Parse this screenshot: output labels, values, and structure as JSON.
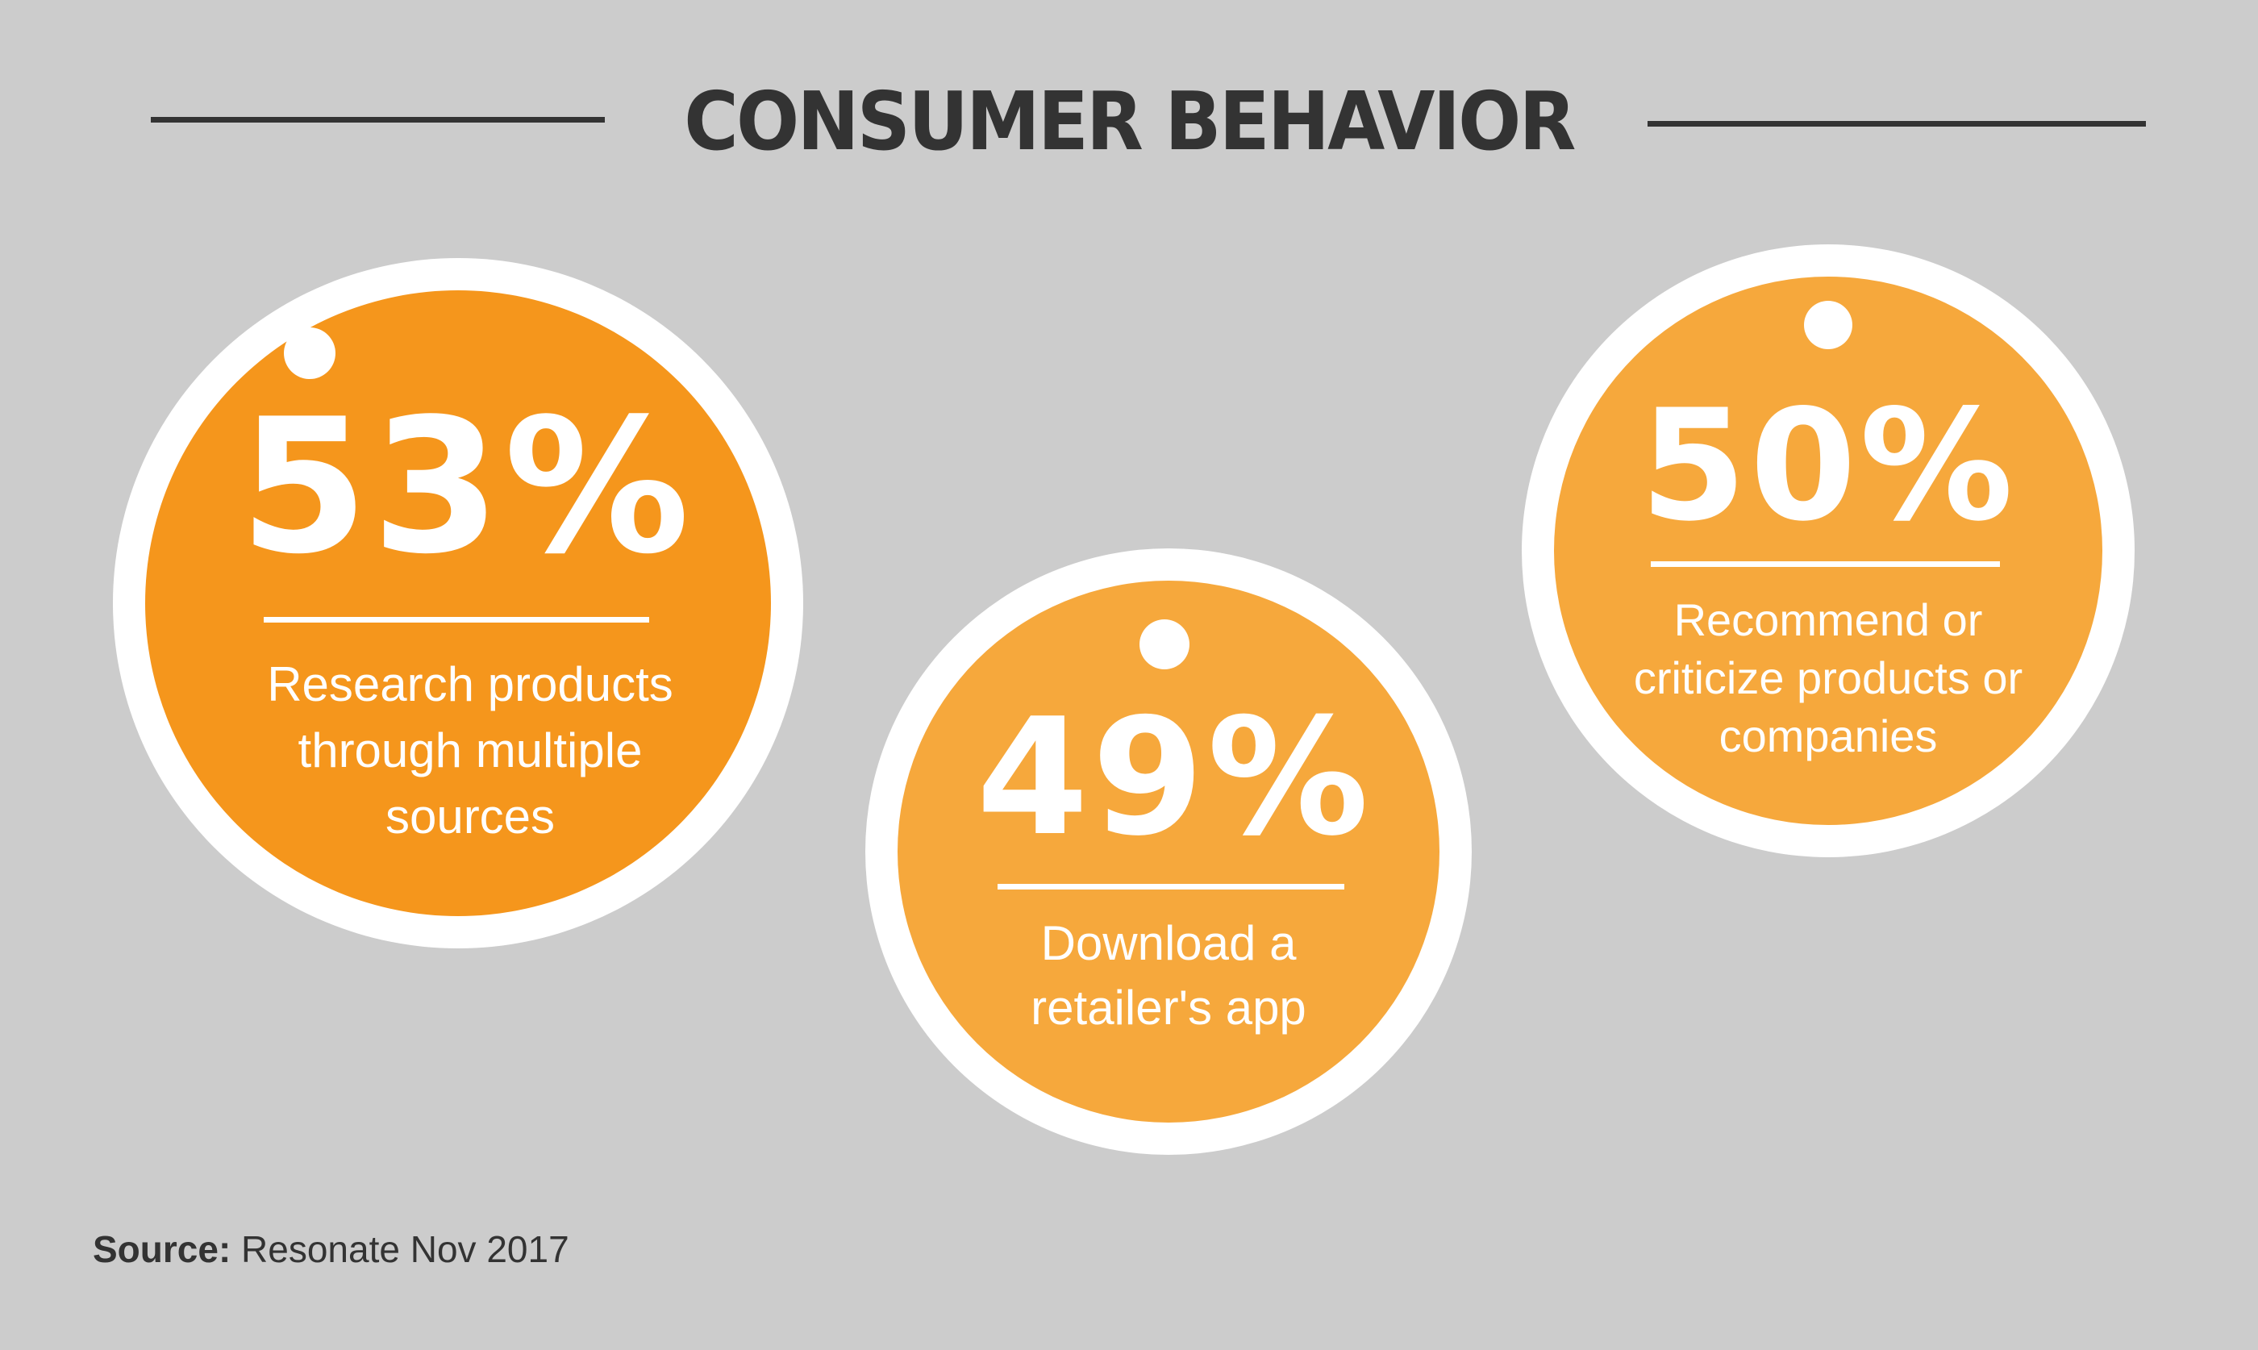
{
  "header": {
    "title": "CONSUMER BEHAVIOR"
  },
  "stats": [
    {
      "value": "53%",
      "label_lines": [
        "Research products",
        "through multiple",
        "sources"
      ],
      "color": "#f5961c"
    },
    {
      "value": "49%",
      "label_lines": [
        "Download a",
        "retailer's app"
      ],
      "color": "#f6a83c"
    },
    {
      "value": "50%",
      "label_lines": [
        "Recommend or",
        "criticize products or",
        "companies"
      ],
      "color": "#f6a83c"
    }
  ],
  "footer": {
    "source_label": "Source:",
    "source_text": "Resonate Nov 2017"
  },
  "colors": {
    "background": "#cccccc",
    "text_dark": "#333333",
    "ring": "#ffffff"
  }
}
